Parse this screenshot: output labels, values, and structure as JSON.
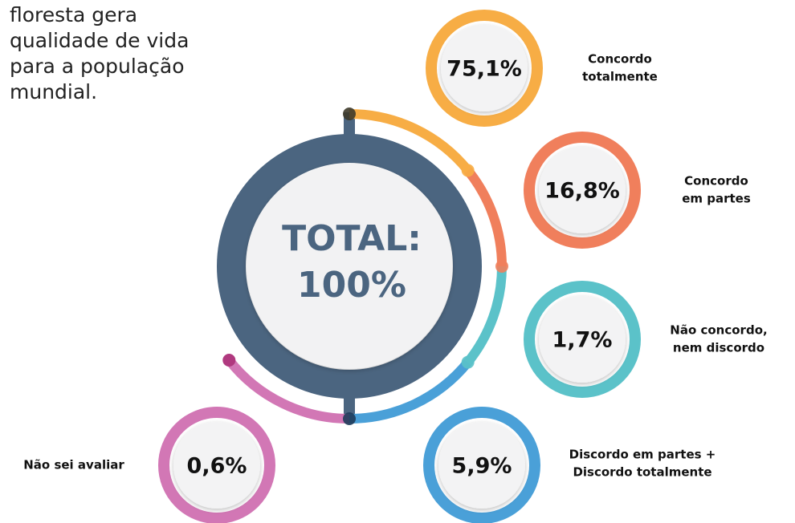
{
  "intro": [
    "floresta gera",
    "qualidade de vida",
    "para a população",
    "mundial."
  ],
  "center": [
    "TOTAL:",
    "100%"
  ],
  "items": [
    {
      "value": "75,1%",
      "label": [
        "Concordo",
        "totalmente"
      ],
      "color": "#f7ad45"
    },
    {
      "value": "16,8%",
      "label": [
        "Concordo",
        "em partes"
      ],
      "color": "#f07f5c"
    },
    {
      "value": "1,7%",
      "label": [
        "Não concordo,",
        "nem discordo"
      ],
      "color": "#5bc2c9"
    },
    {
      "value": "5,9%",
      "label": [
        "Discordo em partes +",
        "Discordo totalmente"
      ],
      "color": "#4aa0d8"
    },
    {
      "value": "0,6%",
      "label": [
        "Não sei avaliar"
      ],
      "color": "#d277b5"
    }
  ]
}
